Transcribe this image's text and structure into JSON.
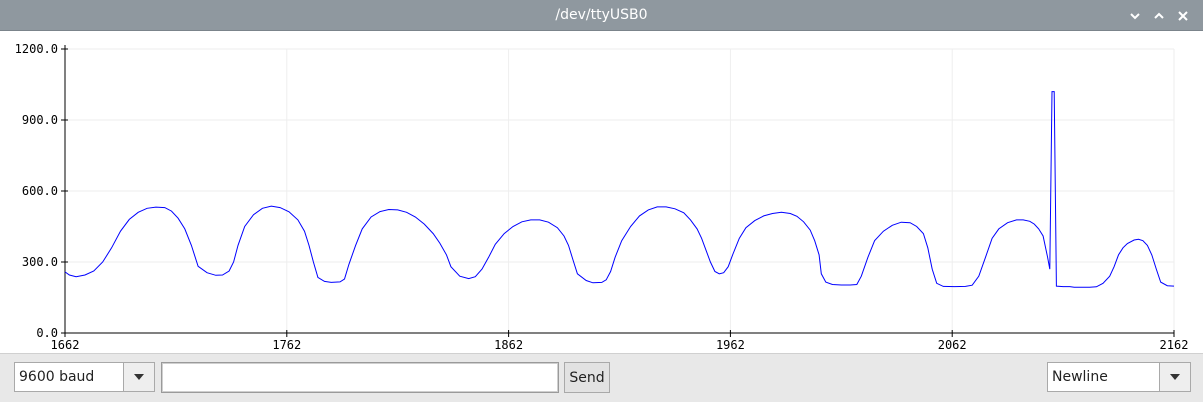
{
  "window": {
    "title": "/dev/ttyUSB0",
    "buttons": {
      "minimize_icon": "chevron-down-icon",
      "maximize_icon": "chevron-up-icon",
      "close_icon": "close-icon"
    }
  },
  "colors": {
    "titlebar": "#8f989f",
    "series": "#0000ff",
    "grid": "#eeeeee"
  },
  "chart_data": {
    "type": "line",
    "xlim": [
      1662,
      2162
    ],
    "ylim": [
      0,
      1200
    ],
    "x_ticks": [
      "1662",
      "1762",
      "1862",
      "1962",
      "2062",
      "2162"
    ],
    "y_ticks": [
      "0.0",
      "300.0",
      "600.0",
      "900.0",
      "1200.0"
    ],
    "grid": true,
    "series": [
      {
        "points": [
          [
            1662,
            258
          ],
          [
            1664,
            245
          ],
          [
            1667,
            238
          ],
          [
            1671,
            245
          ],
          [
            1675,
            262
          ],
          [
            1679,
            300
          ],
          [
            1683,
            360
          ],
          [
            1687,
            430
          ],
          [
            1691,
            480
          ],
          [
            1695,
            510
          ],
          [
            1699,
            527
          ],
          [
            1703,
            532
          ],
          [
            1707,
            530
          ],
          [
            1710,
            515
          ],
          [
            1713,
            485
          ],
          [
            1716,
            440
          ],
          [
            1719,
            370
          ],
          [
            1722,
            282
          ],
          [
            1726,
            255
          ],
          [
            1730,
            244
          ],
          [
            1733,
            245
          ],
          [
            1736,
            262
          ],
          [
            1738,
            300
          ],
          [
            1740,
            370
          ],
          [
            1743,
            450
          ],
          [
            1747,
            500
          ],
          [
            1751,
            527
          ],
          [
            1755,
            536
          ],
          [
            1759,
            530
          ],
          [
            1763,
            512
          ],
          [
            1767,
            478
          ],
          [
            1770,
            430
          ],
          [
            1772,
            370
          ],
          [
            1774,
            300
          ],
          [
            1776,
            235
          ],
          [
            1779,
            218
          ],
          [
            1782,
            214
          ],
          [
            1786,
            216
          ],
          [
            1788,
            228
          ],
          [
            1790,
            290
          ],
          [
            1793,
            370
          ],
          [
            1796,
            440
          ],
          [
            1800,
            490
          ],
          [
            1804,
            513
          ],
          [
            1808,
            522
          ],
          [
            1812,
            520
          ],
          [
            1816,
            510
          ],
          [
            1820,
            490
          ],
          [
            1824,
            460
          ],
          [
            1828,
            420
          ],
          [
            1831,
            380
          ],
          [
            1834,
            330
          ],
          [
            1836,
            280
          ],
          [
            1840,
            240
          ],
          [
            1844,
            230
          ],
          [
            1847,
            238
          ],
          [
            1850,
            270
          ],
          [
            1853,
            320
          ],
          [
            1856,
            375
          ],
          [
            1860,
            420
          ],
          [
            1864,
            450
          ],
          [
            1868,
            470
          ],
          [
            1872,
            478
          ],
          [
            1876,
            478
          ],
          [
            1880,
            468
          ],
          [
            1884,
            445
          ],
          [
            1887,
            410
          ],
          [
            1889,
            370
          ],
          [
            1891,
            310
          ],
          [
            1893,
            250
          ],
          [
            1897,
            222
          ],
          [
            1900,
            212
          ],
          [
            1904,
            214
          ],
          [
            1906,
            225
          ],
          [
            1908,
            260
          ],
          [
            1910,
            320
          ],
          [
            1913,
            390
          ],
          [
            1917,
            450
          ],
          [
            1921,
            495
          ],
          [
            1925,
            520
          ],
          [
            1929,
            533
          ],
          [
            1933,
            533
          ],
          [
            1937,
            525
          ],
          [
            1941,
            508
          ],
          [
            1944,
            478
          ],
          [
            1947,
            440
          ],
          [
            1949,
            400
          ],
          [
            1951,
            350
          ],
          [
            1953,
            300
          ],
          [
            1955,
            260
          ],
          [
            1957,
            250
          ],
          [
            1959,
            255
          ],
          [
            1961,
            280
          ],
          [
            1963,
            330
          ],
          [
            1966,
            400
          ],
          [
            1969,
            445
          ],
          [
            1973,
            475
          ],
          [
            1977,
            495
          ],
          [
            1981,
            505
          ],
          [
            1985,
            510
          ],
          [
            1989,
            505
          ],
          [
            1992,
            493
          ],
          [
            1995,
            470
          ],
          [
            1998,
            435
          ],
          [
            2000,
            390
          ],
          [
            2002,
            330
          ],
          [
            2003,
            250
          ],
          [
            2005,
            215
          ],
          [
            2008,
            205
          ],
          [
            2012,
            203
          ],
          [
            2016,
            203
          ],
          [
            2019,
            205
          ],
          [
            2021,
            240
          ],
          [
            2024,
            320
          ],
          [
            2027,
            390
          ],
          [
            2031,
            430
          ],
          [
            2035,
            455
          ],
          [
            2039,
            468
          ],
          [
            2043,
            466
          ],
          [
            2046,
            450
          ],
          [
            2049,
            420
          ],
          [
            2051,
            360
          ],
          [
            2053,
            270
          ],
          [
            2055,
            210
          ],
          [
            2058,
            197
          ],
          [
            2063,
            196
          ],
          [
            2068,
            197
          ],
          [
            2071,
            202
          ],
          [
            2074,
            240
          ],
          [
            2077,
            320
          ],
          [
            2080,
            400
          ],
          [
            2083,
            440
          ],
          [
            2087,
            466
          ],
          [
            2091,
            478
          ],
          [
            2094,
            478
          ],
          [
            2097,
            472
          ],
          [
            2099,
            460
          ],
          [
            2101,
            440
          ],
          [
            2103,
            410
          ],
          [
            2105,
            320
          ],
          [
            2106,
            270
          ],
          [
            2107,
            1020
          ],
          [
            2108,
            1020
          ],
          [
            2109,
            198
          ],
          [
            2112,
            196
          ],
          [
            2115,
            196
          ],
          [
            2117,
            193
          ],
          [
            2120,
            193
          ],
          [
            2124,
            193
          ],
          [
            2127,
            195
          ],
          [
            2130,
            210
          ],
          [
            2133,
            240
          ],
          [
            2135,
            280
          ],
          [
            2137,
            330
          ],
          [
            2139,
            360
          ],
          [
            2141,
            378
          ],
          [
            2144,
            393
          ],
          [
            2146,
            396
          ],
          [
            2148,
            390
          ],
          [
            2150,
            370
          ],
          [
            2152,
            330
          ],
          [
            2154,
            270
          ],
          [
            2156,
            215
          ],
          [
            2159,
            200
          ],
          [
            2162,
            198
          ]
        ]
      }
    ]
  },
  "controls": {
    "baud": {
      "selected": "9600 baud"
    },
    "input": {
      "value": "",
      "placeholder": ""
    },
    "send_label": "Send",
    "line_ending": {
      "selected": "Newline"
    }
  }
}
